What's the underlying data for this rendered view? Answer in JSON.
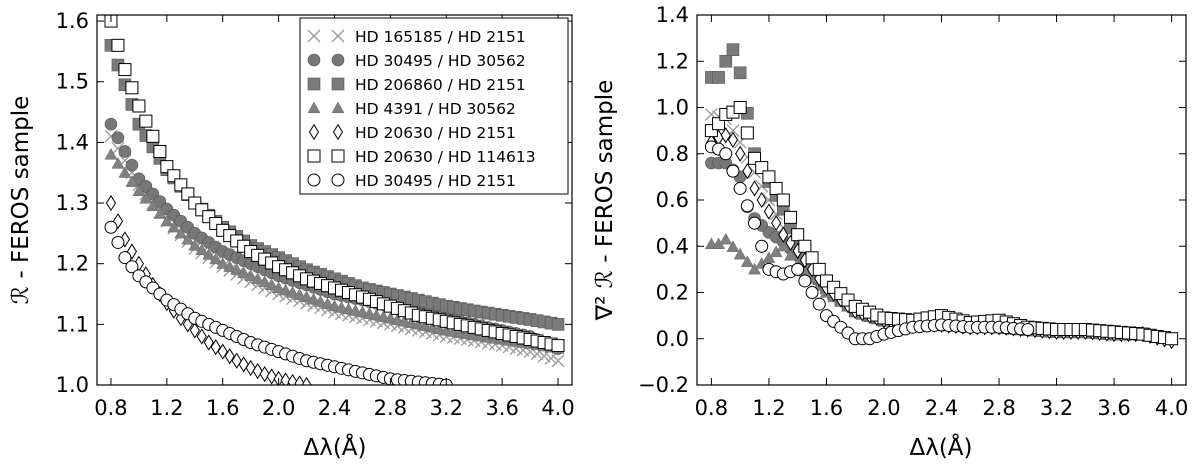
{
  "chart_data": [
    {
      "type": "scatter",
      "xlabel": "Δλ(Å)",
      "ylabel": "ℛ - FEROS sample",
      "xlim": [
        0.7,
        4.1
      ],
      "ylim": [
        1.0,
        1.61
      ],
      "xticks": [
        "0.8",
        "1.2",
        "1.6",
        "2.0",
        "2.4",
        "2.8",
        "3.2",
        "3.6",
        "4.0"
      ],
      "yticks": [
        "1.0",
        "1.1",
        "1.2",
        "1.3",
        "1.4",
        "1.5",
        "1.6"
      ],
      "legend_position": "top-right",
      "series": [
        {
          "name": "HD 165185 / HD 2151",
          "marker": "x",
          "color": "#999999",
          "x": [
            0.8,
            1.0,
            1.2,
            1.4,
            1.6,
            1.8,
            2.0,
            2.2,
            2.4,
            2.6,
            2.8,
            3.0,
            3.2,
            3.4,
            3.6,
            3.8,
            4.0
          ],
          "y": [
            1.41,
            1.33,
            1.27,
            1.225,
            1.195,
            1.17,
            1.15,
            1.135,
            1.12,
            1.11,
            1.1,
            1.09,
            1.08,
            1.073,
            1.065,
            1.055,
            1.04
          ]
        },
        {
          "name": "HD 30495 / HD 30562",
          "marker": "circle-filled",
          "color": "#777777",
          "x": [
            0.8,
            1.0,
            1.2,
            1.4,
            1.6,
            1.8,
            2.0,
            2.2,
            2.4,
            2.6,
            2.8,
            3.0,
            3.2,
            3.4,
            3.6,
            3.8,
            4.0
          ],
          "y": [
            1.43,
            1.34,
            1.29,
            1.25,
            1.22,
            1.2,
            1.18,
            1.165,
            1.15,
            1.14,
            1.13,
            1.12,
            1.11,
            1.1,
            1.09,
            1.08,
            1.06
          ]
        },
        {
          "name": "HD 206860 / HD 2151",
          "marker": "square-filled",
          "color": "#7a7a7a",
          "x": [
            0.8,
            1.0,
            1.2,
            1.4,
            1.6,
            1.8,
            2.0,
            2.2,
            2.4,
            2.6,
            2.8,
            3.0,
            3.2,
            3.4,
            3.6,
            3.8,
            4.0
          ],
          "y": [
            1.56,
            1.43,
            1.355,
            1.3,
            1.26,
            1.23,
            1.21,
            1.19,
            1.175,
            1.16,
            1.15,
            1.14,
            1.13,
            1.122,
            1.115,
            1.108,
            1.1
          ]
        },
        {
          "name": "HD 4391 / HD 30562",
          "marker": "triangle-filled",
          "color": "#808080",
          "x": [
            0.8,
            1.0,
            1.2,
            1.4,
            1.6,
            1.8,
            2.0,
            2.2,
            2.4,
            2.6,
            2.8,
            3.0,
            3.2,
            3.4,
            3.6,
            3.8,
            4.0
          ],
          "y": [
            1.38,
            1.32,
            1.27,
            1.23,
            1.2,
            1.18,
            1.16,
            1.145,
            1.13,
            1.12,
            1.11,
            1.1,
            1.09,
            1.082,
            1.075,
            1.068,
            1.06
          ]
        },
        {
          "name": "HD 20630 / HD 2151",
          "marker": "diamond-open",
          "color": "#000000",
          "x": [
            0.8,
            0.9,
            1.0,
            1.1,
            1.2,
            1.3,
            1.4,
            1.5,
            1.6,
            1.7,
            1.8,
            1.9,
            2.0,
            2.2
          ],
          "y": [
            1.3,
            1.24,
            1.2,
            1.165,
            1.135,
            1.11,
            1.09,
            1.07,
            1.055,
            1.04,
            1.028,
            1.018,
            1.01,
            1.0
          ]
        },
        {
          "name": "HD 20630 / HD 114613",
          "marker": "square-open",
          "color": "#000000",
          "x": [
            0.8,
            0.9,
            1.0,
            1.2,
            1.4,
            1.6,
            1.8,
            2.0,
            2.2,
            2.4,
            2.6,
            2.8,
            3.0,
            3.2,
            3.4,
            3.6,
            3.8,
            4.0
          ],
          "y": [
            1.6,
            1.52,
            1.46,
            1.36,
            1.3,
            1.255,
            1.22,
            1.195,
            1.175,
            1.16,
            1.145,
            1.13,
            1.115,
            1.105,
            1.095,
            1.085,
            1.075,
            1.065
          ]
        },
        {
          "name": "HD 30495 / HD 2151",
          "marker": "circle-open",
          "color": "#000000",
          "x": [
            0.8,
            0.9,
            1.0,
            1.2,
            1.4,
            1.6,
            1.8,
            2.0,
            2.2,
            2.4,
            2.6,
            2.8,
            3.0,
            3.2
          ],
          "y": [
            1.26,
            1.21,
            1.18,
            1.14,
            1.11,
            1.09,
            1.07,
            1.055,
            1.04,
            1.03,
            1.02,
            1.01,
            1.005,
            1.0
          ]
        }
      ]
    },
    {
      "type": "scatter",
      "xlabel": "Δλ(Å)",
      "ylabel": "∇² ℛ - FEROS sample",
      "xlim": [
        0.7,
        4.1
      ],
      "ylim": [
        -0.2,
        1.4
      ],
      "xticks": [
        "0.8",
        "1.2",
        "1.6",
        "2.0",
        "2.4",
        "2.8",
        "3.2",
        "3.6",
        "4.0"
      ],
      "yticks": [
        "−0.2",
        "0.0",
        "0.2",
        "0.4",
        "0.6",
        "0.8",
        "1.0",
        "1.2",
        "1.4"
      ],
      "series": [
        {
          "name": "HD 165185 / HD 2151",
          "marker": "x",
          "color": "#999999",
          "x": [
            0.8,
            0.9,
            1.0,
            1.1,
            1.2,
            1.3,
            1.4,
            1.5,
            1.6,
            1.8,
            2.0,
            2.2,
            2.4,
            2.6,
            2.8,
            3.0,
            3.2,
            3.4,
            3.6,
            3.8,
            4.0
          ],
          "y": [
            0.97,
            0.95,
            0.85,
            0.72,
            0.6,
            0.48,
            0.38,
            0.3,
            0.22,
            0.12,
            0.08,
            0.07,
            0.06,
            0.05,
            0.05,
            0.04,
            0.03,
            0.03,
            0.02,
            0.02,
            0.0
          ]
        },
        {
          "name": "HD 30495 / HD 30562",
          "marker": "circle-filled",
          "color": "#777777",
          "x": [
            0.8,
            0.9,
            1.0,
            1.05,
            1.1,
            1.2,
            1.3,
            1.4,
            1.5,
            1.6,
            1.8,
            2.0,
            2.2,
            2.4,
            2.6,
            2.8,
            3.0,
            3.2,
            3.4,
            3.6,
            3.8,
            4.0
          ],
          "y": [
            0.76,
            0.76,
            0.7,
            0.57,
            0.52,
            0.46,
            0.42,
            0.36,
            0.3,
            0.22,
            0.12,
            0.08,
            0.07,
            0.06,
            0.06,
            0.05,
            0.04,
            0.03,
            0.03,
            0.02,
            0.02,
            0.0
          ]
        },
        {
          "name": "HD 206860 / HD 2151",
          "marker": "square-filled",
          "color": "#7a7a7a",
          "x": [
            0.8,
            0.85,
            0.9,
            0.95,
            1.0,
            1.1,
            1.2,
            1.3,
            1.4,
            1.5,
            1.6,
            1.8,
            2.0,
            2.2,
            2.4,
            2.6,
            2.8,
            3.0,
            3.2,
            3.4,
            3.6,
            3.8,
            4.0
          ],
          "y": [
            1.13,
            1.13,
            1.2,
            1.25,
            1.15,
            0.8,
            0.68,
            0.56,
            0.4,
            0.3,
            0.22,
            0.12,
            0.08,
            0.08,
            0.06,
            0.06,
            0.05,
            0.04,
            0.03,
            0.03,
            0.02,
            0.02,
            0.0
          ]
        },
        {
          "name": "HD 4391 / HD 30562",
          "marker": "triangle-filled",
          "color": "#808080",
          "x": [
            0.8,
            0.85,
            0.9,
            1.1,
            1.2,
            1.3,
            1.4,
            1.6,
            1.8,
            2.0,
            2.2,
            2.4,
            2.6,
            2.8,
            3.0,
            3.2,
            3.4,
            3.6,
            3.8,
            4.0
          ],
          "y": [
            0.41,
            0.41,
            0.43,
            0.3,
            0.35,
            0.4,
            0.32,
            0.2,
            0.12,
            0.08,
            0.06,
            0.06,
            0.05,
            0.05,
            0.04,
            0.03,
            0.03,
            0.02,
            0.02,
            0.0
          ]
        },
        {
          "name": "HD 20630 / HD 2151",
          "marker": "diamond-open",
          "color": "#000000",
          "x": [
            0.8,
            0.85,
            0.9,
            0.95,
            1.0,
            1.1,
            1.2,
            1.3,
            1.4,
            1.5,
            1.6,
            1.8,
            2.0,
            2.2,
            2.4,
            2.6,
            2.8,
            3.0,
            3.2,
            3.4,
            3.6,
            3.8,
            4.0
          ],
          "y": [
            0.85,
            0.87,
            0.88,
            0.86,
            0.8,
            0.65,
            0.55,
            0.45,
            0.38,
            0.3,
            0.22,
            0.12,
            0.08,
            0.07,
            0.06,
            0.05,
            0.05,
            0.04,
            0.03,
            0.03,
            0.02,
            0.02,
            -0.01
          ]
        },
        {
          "name": "HD 20630 / HD 114613",
          "marker": "square-open",
          "color": "#000000",
          "x": [
            0.8,
            0.85,
            0.9,
            0.95,
            1.0,
            1.1,
            1.2,
            1.3,
            1.4,
            1.5,
            1.6,
            1.8,
            2.0,
            2.2,
            2.4,
            2.6,
            2.8,
            3.0,
            3.2,
            3.4,
            3.6,
            3.8,
            4.0
          ],
          "y": [
            0.9,
            0.93,
            0.97,
            0.98,
            1.0,
            0.78,
            0.7,
            0.6,
            0.45,
            0.35,
            0.25,
            0.14,
            0.09,
            0.08,
            0.1,
            0.07,
            0.08,
            0.05,
            0.04,
            0.04,
            0.03,
            0.02,
            0.0
          ]
        },
        {
          "name": "HD 30495 / HD 2151",
          "marker": "circle-open",
          "color": "#000000",
          "x": [
            0.8,
            0.85,
            0.9,
            1.0,
            1.1,
            1.2,
            1.3,
            1.4,
            1.5,
            1.6,
            1.7,
            1.8,
            1.9,
            2.0,
            2.2,
            2.4,
            2.6,
            2.8,
            3.0
          ],
          "y": [
            0.83,
            0.82,
            0.8,
            0.65,
            0.5,
            0.3,
            0.28,
            0.3,
            0.2,
            0.1,
            0.05,
            0.0,
            0.0,
            0.02,
            0.05,
            0.06,
            0.05,
            0.05,
            0.04
          ]
        }
      ]
    }
  ]
}
